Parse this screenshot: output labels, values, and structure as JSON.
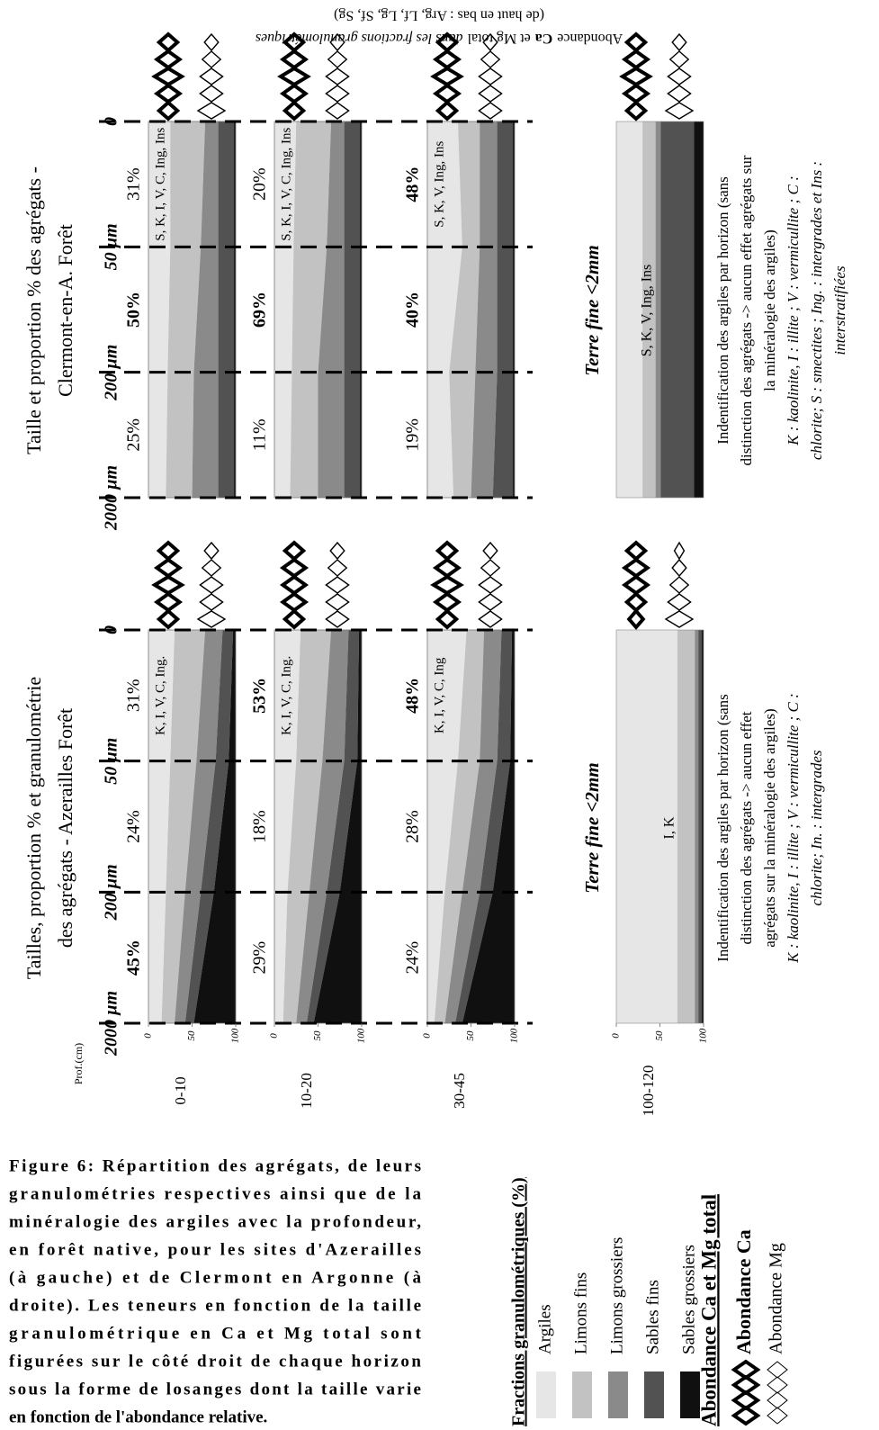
{
  "figure": {
    "caption": [
      "Figure 6: Répartition des agrégats, de leurs",
      "granulométries respectives ainsi que de la",
      "minéralogie des argiles avec la profondeur,",
      "en forêt native, pour les sites d'Azerailles",
      "(à gauche) et de Clermont en Argonne (à",
      "droite). Les teneurs en fonction de la taille",
      "granulométrique en Ca et Mg total sont",
      "figurées sur le côté droit de chaque horizon",
      "sous la forme de losanges dont la taille varie",
      "en fonction de l'abondance relative."
    ],
    "header": {
      "parts": [
        "Abondance",
        "Ca",
        "et Mg total",
        "dans les fractions granulométriques"
      ],
      "subtitle": "(de haut en bas : Arg, Lf, Lg, Sf, Sg)"
    },
    "depth_title": "Prof.(cm)",
    "depths": [
      "0-10",
      "10-20",
      "30-45",
      "100-120"
    ],
    "legend": {
      "title": "Fractions granulométriques (%)",
      "fractions": [
        {
          "name": "Argiles",
          "color": "#e6e6e6"
        },
        {
          "name": "Limons fins",
          "color": "#c2c2c2"
        },
        {
          "name": "Limons grossiers",
          "color": "#8a8a8a"
        },
        {
          "name": "Sables fins",
          "color": "#525252"
        },
        {
          "name": "Sables grossiers",
          "color": "#101010"
        }
      ],
      "abundance_title": "Abondance Ca et Mg total",
      "ca": "Abondance Ca",
      "mg": "Abondance Mg"
    }
  },
  "chart_data": [
    {
      "type": "stacked-area",
      "title": [
        "Tailles, proportion % et granulométrie",
        "des agrégats - Azerailles Forêt"
      ],
      "categories": [
        "2000 µm",
        "200 µm",
        "50 µm",
        "0"
      ],
      "ylim": [
        0,
        100
      ],
      "yticks": [
        0,
        50,
        100
      ],
      "horizons": [
        {
          "proportions": [
            45,
            24,
            31
          ],
          "value_labels": [
            "45%",
            "24%",
            "31%"
          ],
          "emphasis": [
            true,
            false,
            false
          ],
          "minerals": "K, I, V, C, Ing.",
          "fractions": [
            [
              15,
              20,
              25,
              30
            ],
            [
              15,
              22,
              30,
              35
            ],
            [
              12,
              18,
              22,
              20
            ],
            [
              10,
              15,
              15,
              12
            ],
            [
              48,
              25,
              8,
              3
            ]
          ],
          "ca": [
            3,
            4,
            5,
            4,
            3
          ],
          "mg": [
            5,
            4,
            4,
            3,
            2
          ]
        },
        {
          "proportions": [
            29,
            18,
            53
          ],
          "value_labels": [
            "29%",
            "18%",
            "53%"
          ],
          "emphasis": [
            false,
            false,
            true
          ],
          "minerals": "K, I, V, C, Ing.",
          "fractions": [
            [
              10,
              15,
              25,
              30
            ],
            [
              15,
              25,
              30,
              35
            ],
            [
              12,
              20,
              25,
              20
            ],
            [
              8,
              15,
              15,
              12
            ],
            [
              55,
              25,
              5,
              3
            ]
          ],
          "ca": [
            3,
            4,
            4,
            4,
            3
          ],
          "mg": [
            4,
            4,
            4,
            3,
            2
          ]
        },
        {
          "proportions": [
            24,
            28,
            48
          ],
          "value_labels": [
            "24%",
            "28%",
            "48%"
          ],
          "emphasis": [
            false,
            false,
            true
          ],
          "minerals": "K, I, V, C, Ing",
          "fractions": [
            [
              8,
              20,
              35,
              45
            ],
            [
              12,
              20,
              25,
              20
            ],
            [
              12,
              20,
              20,
              20
            ],
            [
              8,
              15,
              15,
              12
            ],
            [
              60,
              25,
              5,
              3
            ]
          ],
          "ca": [
            3,
            4,
            5,
            4,
            3
          ],
          "mg": [
            4,
            4,
            4,
            3,
            2
          ]
        }
      ],
      "fine_earth": {
        "title": "Terre fine <2mm",
        "minerals": "I, K",
        "fractions": [
          70,
          20,
          4,
          4,
          2
        ],
        "ca": [
          2,
          3,
          4,
          4,
          3
        ],
        "mg": [
          5,
          4,
          3,
          2,
          1
        ]
      },
      "note": [
        "Indentification des argiles par horizon (sans",
        "distinction des agrégats -> aucun effet",
        "agrégats sur la minéralogie des argiles)"
      ],
      "abbreviations": [
        "K : kaolinite, I : illite ; V : vermicullite ; C :",
        "chlorite; In. : intergrades"
      ]
    },
    {
      "type": "stacked-area",
      "title": [
        "Taille et proportion % des agrégats -",
        "Clermont-en-A. Forêt"
      ],
      "categories": [
        "2000 µm",
        "200 µm",
        "50 µm",
        "0"
      ],
      "ylim": [
        0,
        100
      ],
      "horizons": [
        {
          "proportions": [
            25,
            50,
            31
          ],
          "value_labels": [
            "25%",
            "50%",
            "31%"
          ],
          "emphasis": [
            false,
            true,
            false
          ],
          "minerals": "S, K, I, V, C, Ing, Ins",
          "fractions": [
            [
              20,
              22,
              25,
              25
            ],
            [
              30,
              30,
              35,
              40
            ],
            [
              30,
              28,
              20,
              15
            ],
            [
              18,
              18,
              18,
              18
            ],
            [
              2,
              2,
              2,
              2
            ]
          ],
          "ca": [
            3,
            4,
            5,
            4,
            3
          ],
          "mg": [
            5,
            4,
            4,
            3,
            2
          ]
        },
        {
          "proportions": [
            11,
            69,
            20
          ],
          "value_labels": [
            "11%",
            "69%",
            "20%"
          ],
          "emphasis": [
            false,
            true,
            false
          ],
          "minerals": "S, K, I, V, C, Ing, Ins",
          "fractions": [
            [
              18,
              20,
              22,
              25
            ],
            [
              32,
              30,
              38,
              40
            ],
            [
              30,
              30,
              20,
              15
            ],
            [
              18,
              18,
              18,
              18
            ],
            [
              2,
              2,
              2,
              2
            ]
          ],
          "ca": [
            3,
            4,
            5,
            4,
            3
          ],
          "mg": [
            4,
            4,
            4,
            3,
            2
          ]
        },
        {
          "proportions": [
            19,
            40,
            48
          ],
          "value_labels": [
            "19%",
            "40%",
            "48%"
          ],
          "emphasis": [
            false,
            true,
            true
          ],
          "minerals": "S, K, V, Ing, Ins",
          "fractions": [
            [
              30,
              25,
              40,
              35
            ],
            [
              20,
              30,
              20,
              25
            ],
            [
              25,
              25,
              20,
              20
            ],
            [
              23,
              18,
              18,
              18
            ],
            [
              2,
              2,
              2,
              2
            ]
          ],
          "ca": [
            3,
            4,
            5,
            4,
            3
          ],
          "mg": [
            4,
            4,
            4,
            3,
            2
          ]
        }
      ],
      "fine_earth": {
        "title": "Terre fine <2mm",
        "minerals": "S, K, V, Ing, Ins",
        "fractions": [
          30,
          15,
          6,
          38,
          11
        ],
        "ca": [
          3,
          4,
          5,
          4,
          3
        ],
        "mg": [
          5,
          4,
          4,
          3,
          2
        ]
      },
      "note": [
        "Indentification des argiles par horizon (sans",
        "distinction des agrégats -> aucun effet agrégats sur",
        "la minéralogie des argiles)"
      ],
      "abbreviations": [
        "K : kaolinite, I : illite ; V : vermicullite ; C :",
        "chlorite; S : smectites ; Ing. : intergrades et Ins :",
        "interstratifiées"
      ]
    }
  ]
}
